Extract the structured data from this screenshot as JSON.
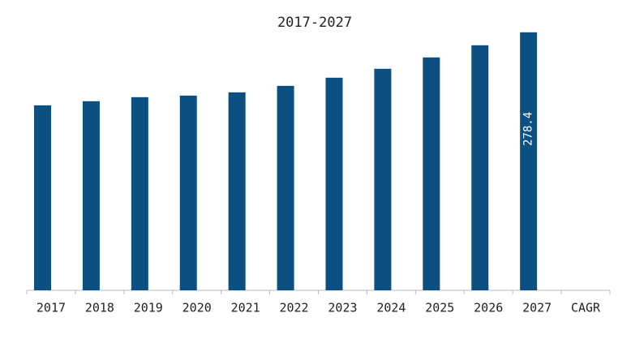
{
  "chart_data": {
    "type": "bar",
    "title": "2017-2027",
    "categories": [
      "2017",
      "2018",
      "2019",
      "2020",
      "2021",
      "2022",
      "2023",
      "2024",
      "2025",
      "2026",
      "2027",
      "CAGR"
    ],
    "values": [
      199.6,
      204.0,
      208.4,
      210.1,
      213.6,
      220.6,
      229.4,
      239.0,
      251.3,
      264.4,
      278.4,
      null
    ],
    "value_labels": [
      null,
      null,
      null,
      null,
      null,
      null,
      null,
      null,
      null,
      null,
      "278.4",
      null
    ],
    "color": "#0b5080",
    "ylim": [
      0,
      287
    ]
  }
}
